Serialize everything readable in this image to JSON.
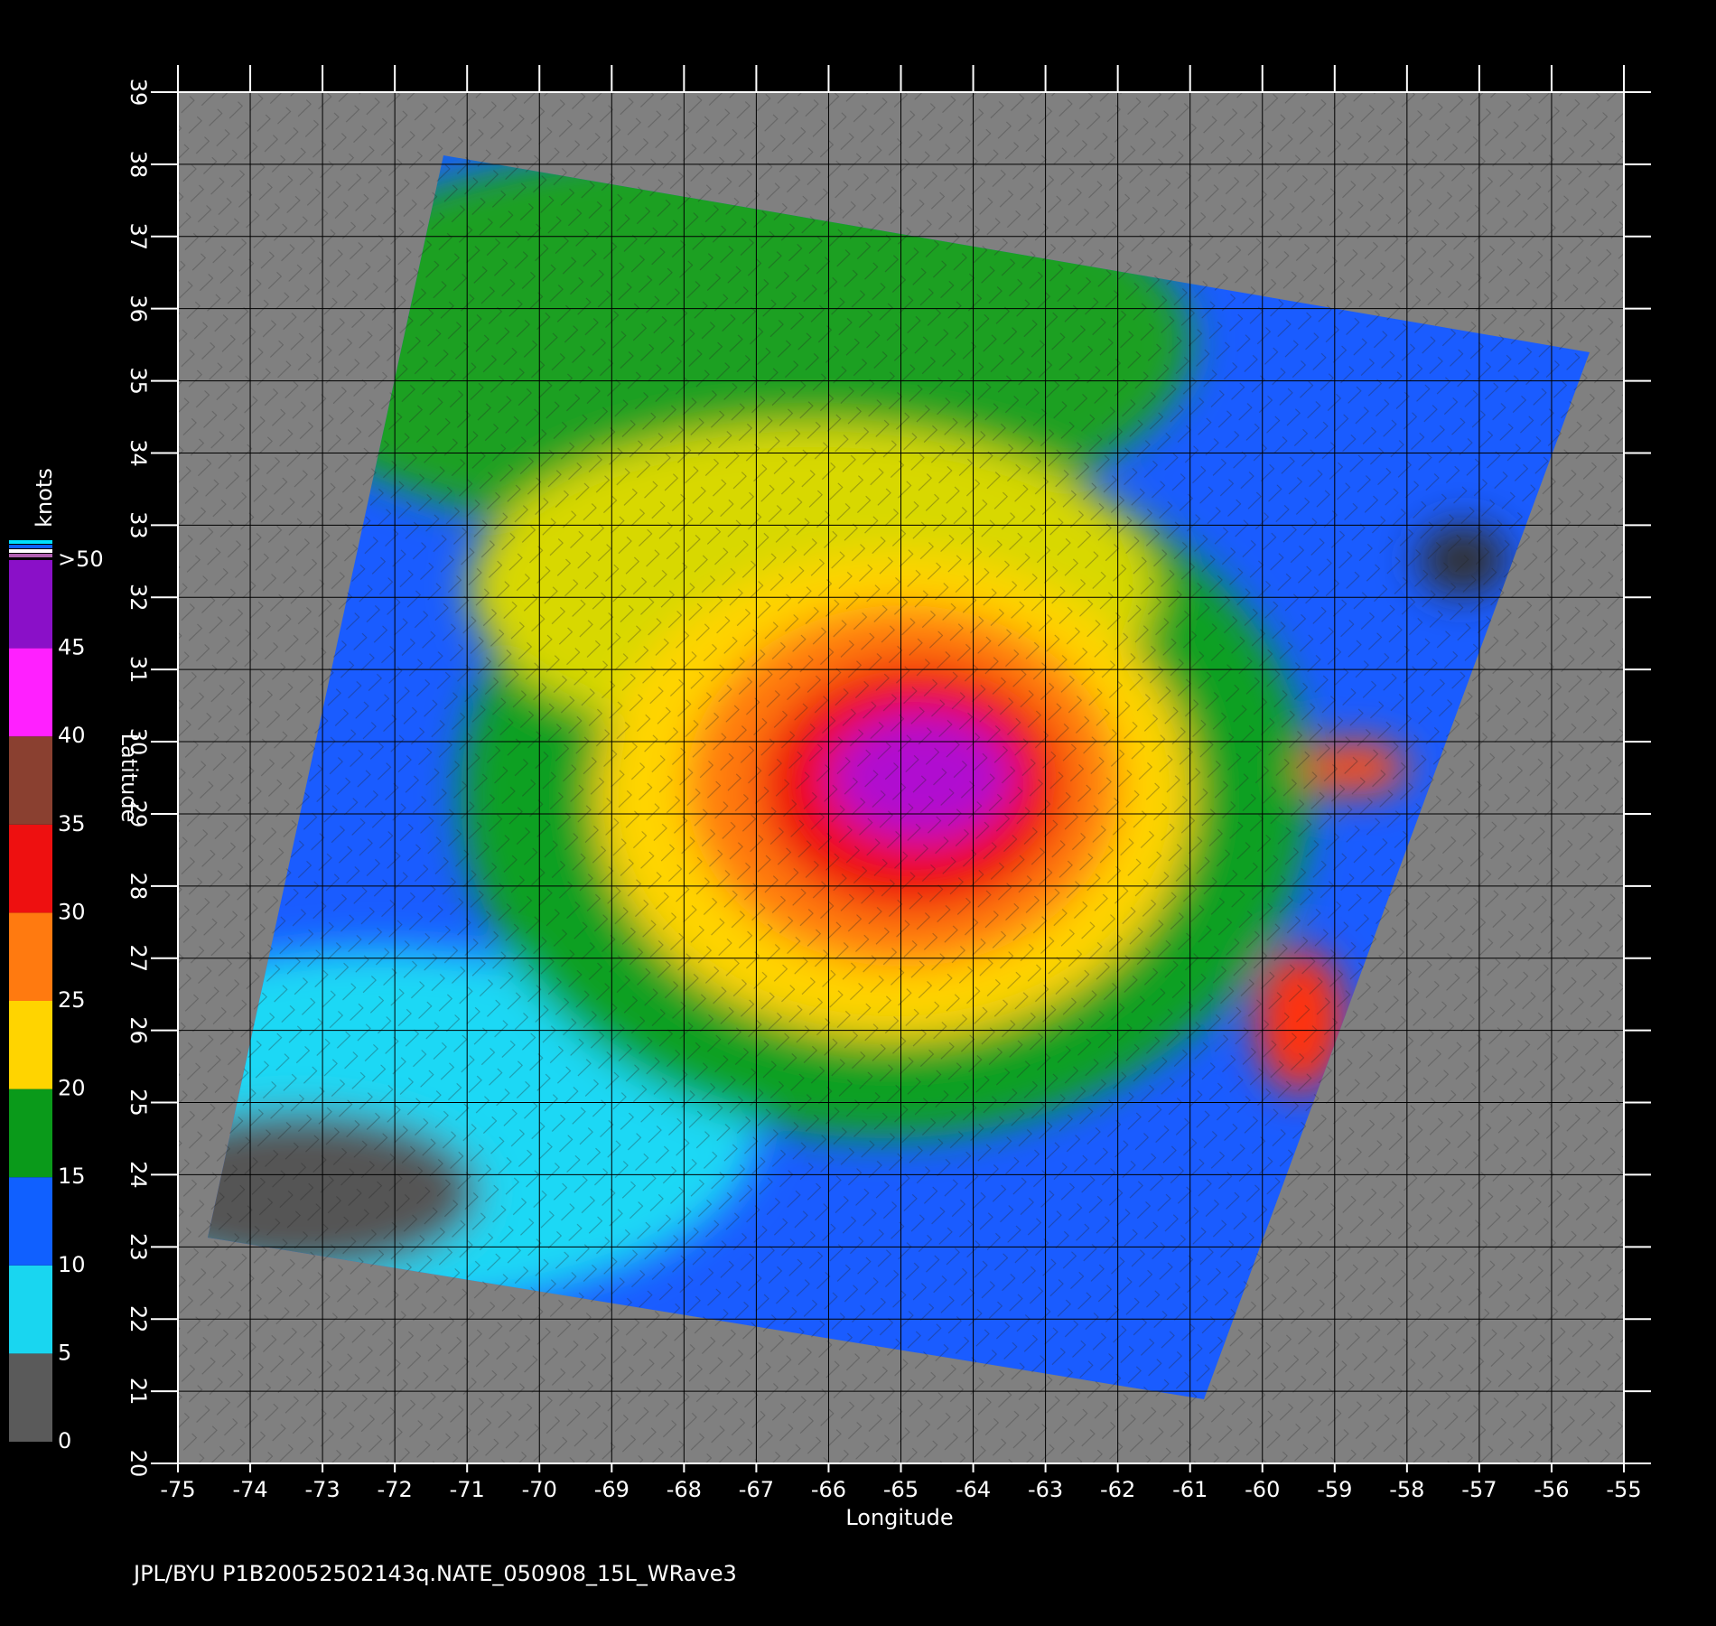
{
  "map": {
    "xlabel": "Longitude",
    "ylabel": "Latitude",
    "xlim": [
      -75,
      -55
    ],
    "ylim": [
      20,
      39
    ],
    "xticks": [
      -75,
      -74,
      -73,
      -72,
      -71,
      -70,
      -69,
      -68,
      -67,
      -66,
      -65,
      -64,
      -63,
      -62,
      -61,
      -60,
      -59,
      -58,
      -57,
      -56,
      -55
    ],
    "yticks": [
      20,
      21,
      22,
      23,
      24,
      25,
      26,
      27,
      28,
      29,
      30,
      31,
      32,
      33,
      34,
      35,
      36,
      37,
      38,
      39
    ],
    "grid": true
  },
  "colorbar": {
    "title": "knots",
    "clim": [
      0,
      50
    ],
    "levels": [
      0,
      5,
      10,
      15,
      20,
      25,
      30,
      35,
      40,
      45,
      {
        "value": 50,
        "label": ">50"
      }
    ],
    "colors": [
      "#5a5a5a",
      "#19d6f0",
      "#1060ff",
      "#0a9a1a",
      "#ffd400",
      "#ff7a10",
      "#ee1010",
      "#8a4030",
      "#ff20ff",
      "#8a10c8"
    ]
  },
  "footer": "JPL/BYU  P1B20052502143q.NATE_050908_15L_WRave3"
}
